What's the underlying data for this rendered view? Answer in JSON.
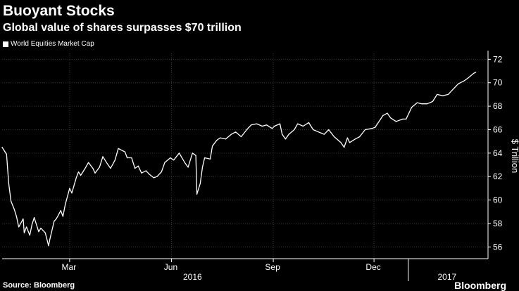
{
  "chart_data": {
    "type": "line",
    "title": "Buoyant Stocks",
    "subtitle": "Global value of shares surpasses $70 trillion",
    "ylabel": "$ Trillion",
    "ylim": [
      55,
      72.5
    ],
    "yticks": [
      56,
      58,
      60,
      62,
      64,
      66,
      68,
      70,
      72
    ],
    "xticks": [
      "Mar",
      "Jun",
      "Sep",
      "Dec"
    ],
    "year_labels": [
      "2016",
      "2017"
    ],
    "grid": true,
    "legend_position": "top-left",
    "source": "Source: Bloomberg",
    "brand": "Bloomberg",
    "colors": {
      "background": "#000000",
      "line": "#ffffff",
      "grid": "#3a3a3a",
      "text": "#ffffff"
    },
    "series": [
      {
        "name": "World Equities Market Cap",
        "x": [
          "2015-12-31",
          "2016-01-04",
          "2016-01-06",
          "2016-01-08",
          "2016-01-11",
          "2016-01-13",
          "2016-01-15",
          "2016-01-19",
          "2016-01-20",
          "2016-01-22",
          "2016-01-25",
          "2016-01-27",
          "2016-01-29",
          "2016-02-02",
          "2016-02-04",
          "2016-02-08",
          "2016-02-11",
          "2016-02-12",
          "2016-02-16",
          "2016-02-18",
          "2016-02-22",
          "2016-02-24",
          "2016-02-26",
          "2016-03-01",
          "2016-03-03",
          "2016-03-07",
          "2016-03-09",
          "2016-03-11",
          "2016-03-15",
          "2016-03-18",
          "2016-03-22",
          "2016-03-24",
          "2016-03-28",
          "2016-03-31",
          "2016-04-04",
          "2016-04-07",
          "2016-04-11",
          "2016-04-14",
          "2016-04-18",
          "2016-04-20",
          "2016-04-22",
          "2016-04-26",
          "2016-04-29",
          "2016-05-02",
          "2016-05-05",
          "2016-05-09",
          "2016-05-12",
          "2016-05-16",
          "2016-05-19",
          "2016-05-23",
          "2016-05-26",
          "2016-05-31",
          "2016-06-03",
          "2016-06-08",
          "2016-06-13",
          "2016-06-16",
          "2016-06-20",
          "2016-06-23",
          "2016-06-24",
          "2016-06-27",
          "2016-06-29",
          "2016-07-01",
          "2016-07-06",
          "2016-07-08",
          "2016-07-12",
          "2016-07-15",
          "2016-07-20",
          "2016-07-25",
          "2016-07-29",
          "2016-08-03",
          "2016-08-08",
          "2016-08-12",
          "2016-08-17",
          "2016-08-22",
          "2016-08-26",
          "2016-08-31",
          "2016-09-02",
          "2016-09-07",
          "2016-09-09",
          "2016-09-12",
          "2016-09-15",
          "2016-09-20",
          "2016-09-23",
          "2016-09-28",
          "2016-10-03",
          "2016-10-07",
          "2016-10-12",
          "2016-10-17",
          "2016-10-21",
          "2016-10-26",
          "2016-11-01",
          "2016-11-04",
          "2016-11-07",
          "2016-11-09",
          "2016-11-14",
          "2016-11-18",
          "2016-11-23",
          "2016-11-29",
          "2016-12-02",
          "2016-12-07",
          "2016-12-09",
          "2016-12-13",
          "2016-12-16",
          "2016-12-21",
          "2016-12-27",
          "2016-12-30",
          "2017-01-04",
          "2017-01-09",
          "2017-01-13",
          "2017-01-18",
          "2017-01-23",
          "2017-01-27",
          "2017-02-01",
          "2017-02-06",
          "2017-02-10",
          "2017-02-15",
          "2017-02-21",
          "2017-02-24",
          "2017-03-01",
          "2017-03-03"
        ],
        "values": [
          64.5,
          63.9,
          61.4,
          59.9,
          59.2,
          58.6,
          57.7,
          58.4,
          57.2,
          57.7,
          57.0,
          57.9,
          58.5,
          57.3,
          57.6,
          57.2,
          56.1,
          56.6,
          58.2,
          58.4,
          59.1,
          58.6,
          59.6,
          61.0,
          60.6,
          61.9,
          62.4,
          62.1,
          62.7,
          63.2,
          62.7,
          62.3,
          62.8,
          63.7,
          63.1,
          62.7,
          63.4,
          64.4,
          64.2,
          64.1,
          63.6,
          63.6,
          62.7,
          62.9,
          62.3,
          62.5,
          62.2,
          61.9,
          62.0,
          62.4,
          63.2,
          63.6,
          63.4,
          64.0,
          63.2,
          62.8,
          64.0,
          63.8,
          60.5,
          61.4,
          62.8,
          63.6,
          63.5,
          64.6,
          65.1,
          65.3,
          65.2,
          65.6,
          65.8,
          65.4,
          66.0,
          66.4,
          66.5,
          66.3,
          66.4,
          66.1,
          66.3,
          66.5,
          65.6,
          65.2,
          65.6,
          66.0,
          66.5,
          66.3,
          66.6,
          66.0,
          65.8,
          65.6,
          66.0,
          65.4,
          64.9,
          64.5,
          65.3,
          64.9,
          65.2,
          65.4,
          66.0,
          66.1,
          66.2,
          66.9,
          67.2,
          67.4,
          67.0,
          66.7,
          66.9,
          66.9,
          67.9,
          68.3,
          68.2,
          68.2,
          68.4,
          69.0,
          68.9,
          69.0,
          69.4,
          69.9,
          70.2,
          70.4,
          70.8,
          70.9
        ]
      }
    ]
  }
}
